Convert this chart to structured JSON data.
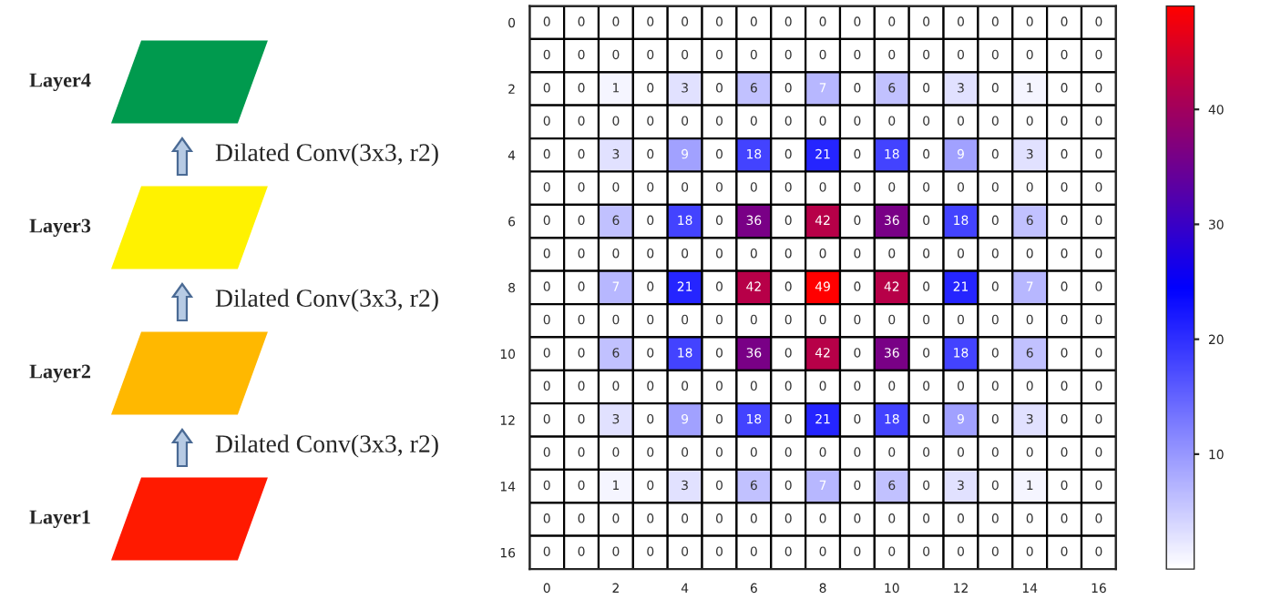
{
  "chart_data": [
    {
      "type": "other",
      "annotations": [
        "Layer4",
        "Dilated Conv(3x3, r2)",
        "Layer3",
        "Dilated Conv(3x3, r2)",
        "Layer2",
        "Dilated Conv(3x3, r2)",
        "Layer1"
      ],
      "colors": [
        "#009a4e",
        "#fff200",
        "#ffb800",
        "#ff1a00"
      ]
    },
    {
      "type": "heatmap",
      "categories": [
        "0",
        null,
        "2",
        null,
        "4",
        null,
        "6",
        null,
        "8",
        null,
        "10",
        null,
        "12",
        null,
        "14",
        null,
        "16"
      ],
      "y_categories": [
        "0",
        null,
        "2",
        null,
        "4",
        null,
        "6",
        null,
        "8",
        null,
        "10",
        null,
        "12",
        null,
        "14",
        null,
        "16"
      ],
      "cells": [
        [
          0,
          0,
          0,
          0,
          0,
          0,
          0,
          0,
          0,
          0,
          0,
          0,
          0,
          0,
          0,
          0,
          0
        ],
        [
          0,
          0,
          0,
          0,
          0,
          0,
          0,
          0,
          0,
          0,
          0,
          0,
          0,
          0,
          0,
          0,
          0
        ],
        [
          0,
          0,
          1,
          0,
          3,
          0,
          6,
          0,
          7,
          0,
          6,
          0,
          3,
          0,
          1,
          0,
          0
        ],
        [
          0,
          0,
          0,
          0,
          0,
          0,
          0,
          0,
          0,
          0,
          0,
          0,
          0,
          0,
          0,
          0,
          0
        ],
        [
          0,
          0,
          3,
          0,
          9,
          0,
          18,
          0,
          21,
          0,
          18,
          0,
          9,
          0,
          3,
          0,
          0
        ],
        [
          0,
          0,
          0,
          0,
          0,
          0,
          0,
          0,
          0,
          0,
          0,
          0,
          0,
          0,
          0,
          0,
          0
        ],
        [
          0,
          0,
          6,
          0,
          18,
          0,
          36,
          0,
          42,
          0,
          36,
          0,
          18,
          0,
          6,
          0,
          0
        ],
        [
          0,
          0,
          0,
          0,
          0,
          0,
          0,
          0,
          0,
          0,
          0,
          0,
          0,
          0,
          0,
          0,
          0
        ],
        [
          0,
          0,
          7,
          0,
          21,
          0,
          42,
          0,
          49,
          0,
          42,
          0,
          21,
          0,
          7,
          0,
          0
        ],
        [
          0,
          0,
          0,
          0,
          0,
          0,
          0,
          0,
          0,
          0,
          0,
          0,
          0,
          0,
          0,
          0,
          0
        ],
        [
          0,
          0,
          6,
          0,
          18,
          0,
          36,
          0,
          42,
          0,
          36,
          0,
          18,
          0,
          6,
          0,
          0
        ],
        [
          0,
          0,
          0,
          0,
          0,
          0,
          0,
          0,
          0,
          0,
          0,
          0,
          0,
          0,
          0,
          0,
          0
        ],
        [
          0,
          0,
          3,
          0,
          9,
          0,
          18,
          0,
          21,
          0,
          18,
          0,
          9,
          0,
          3,
          0,
          0
        ],
        [
          0,
          0,
          0,
          0,
          0,
          0,
          0,
          0,
          0,
          0,
          0,
          0,
          0,
          0,
          0,
          0,
          0
        ],
        [
          0,
          0,
          1,
          0,
          3,
          0,
          6,
          0,
          7,
          0,
          6,
          0,
          3,
          0,
          1,
          0,
          0
        ],
        [
          0,
          0,
          0,
          0,
          0,
          0,
          0,
          0,
          0,
          0,
          0,
          0,
          0,
          0,
          0,
          0,
          0
        ],
        [
          0,
          0,
          0,
          0,
          0,
          0,
          0,
          0,
          0,
          0,
          0,
          0,
          0,
          0,
          0,
          0,
          0
        ]
      ],
      "clim": [
        0,
        49
      ],
      "cticks": [
        10,
        20,
        30,
        40
      ],
      "data_labels": true,
      "colors": [
        "#ffffff",
        "#0000ff",
        "#ff0000"
      ]
    }
  ]
}
